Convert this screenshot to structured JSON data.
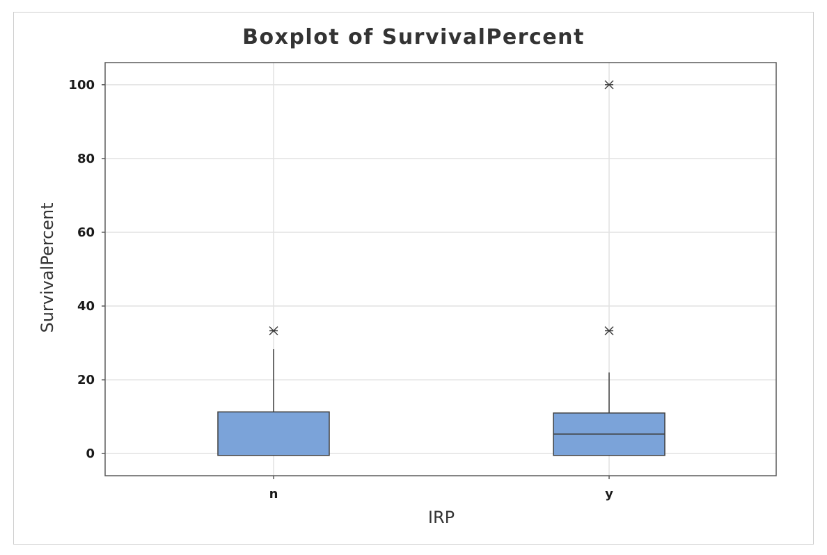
{
  "chart_data": {
    "type": "boxplot",
    "title": "Boxplot of SurvivalPercent",
    "xlabel": "IRP",
    "ylabel": "SurvivalPercent",
    "categories": [
      "n",
      "y"
    ],
    "ylim": [
      -6,
      106
    ],
    "yticks": [
      0,
      20,
      40,
      60,
      80,
      100
    ],
    "grid": true,
    "box_color": "#7ba3d9",
    "boxes": [
      {
        "category": "n",
        "q1": -0.5,
        "median": -0.5,
        "q3": 11.3,
        "whisker_low": -0.5,
        "whisker_high": 28.3,
        "outliers": [
          33.3
        ]
      },
      {
        "category": "y",
        "q1": -0.5,
        "median": 5.3,
        "q3": 11.0,
        "whisker_low": -0.5,
        "whisker_high": 22.0,
        "outliers": [
          33.3,
          100
        ]
      }
    ]
  }
}
